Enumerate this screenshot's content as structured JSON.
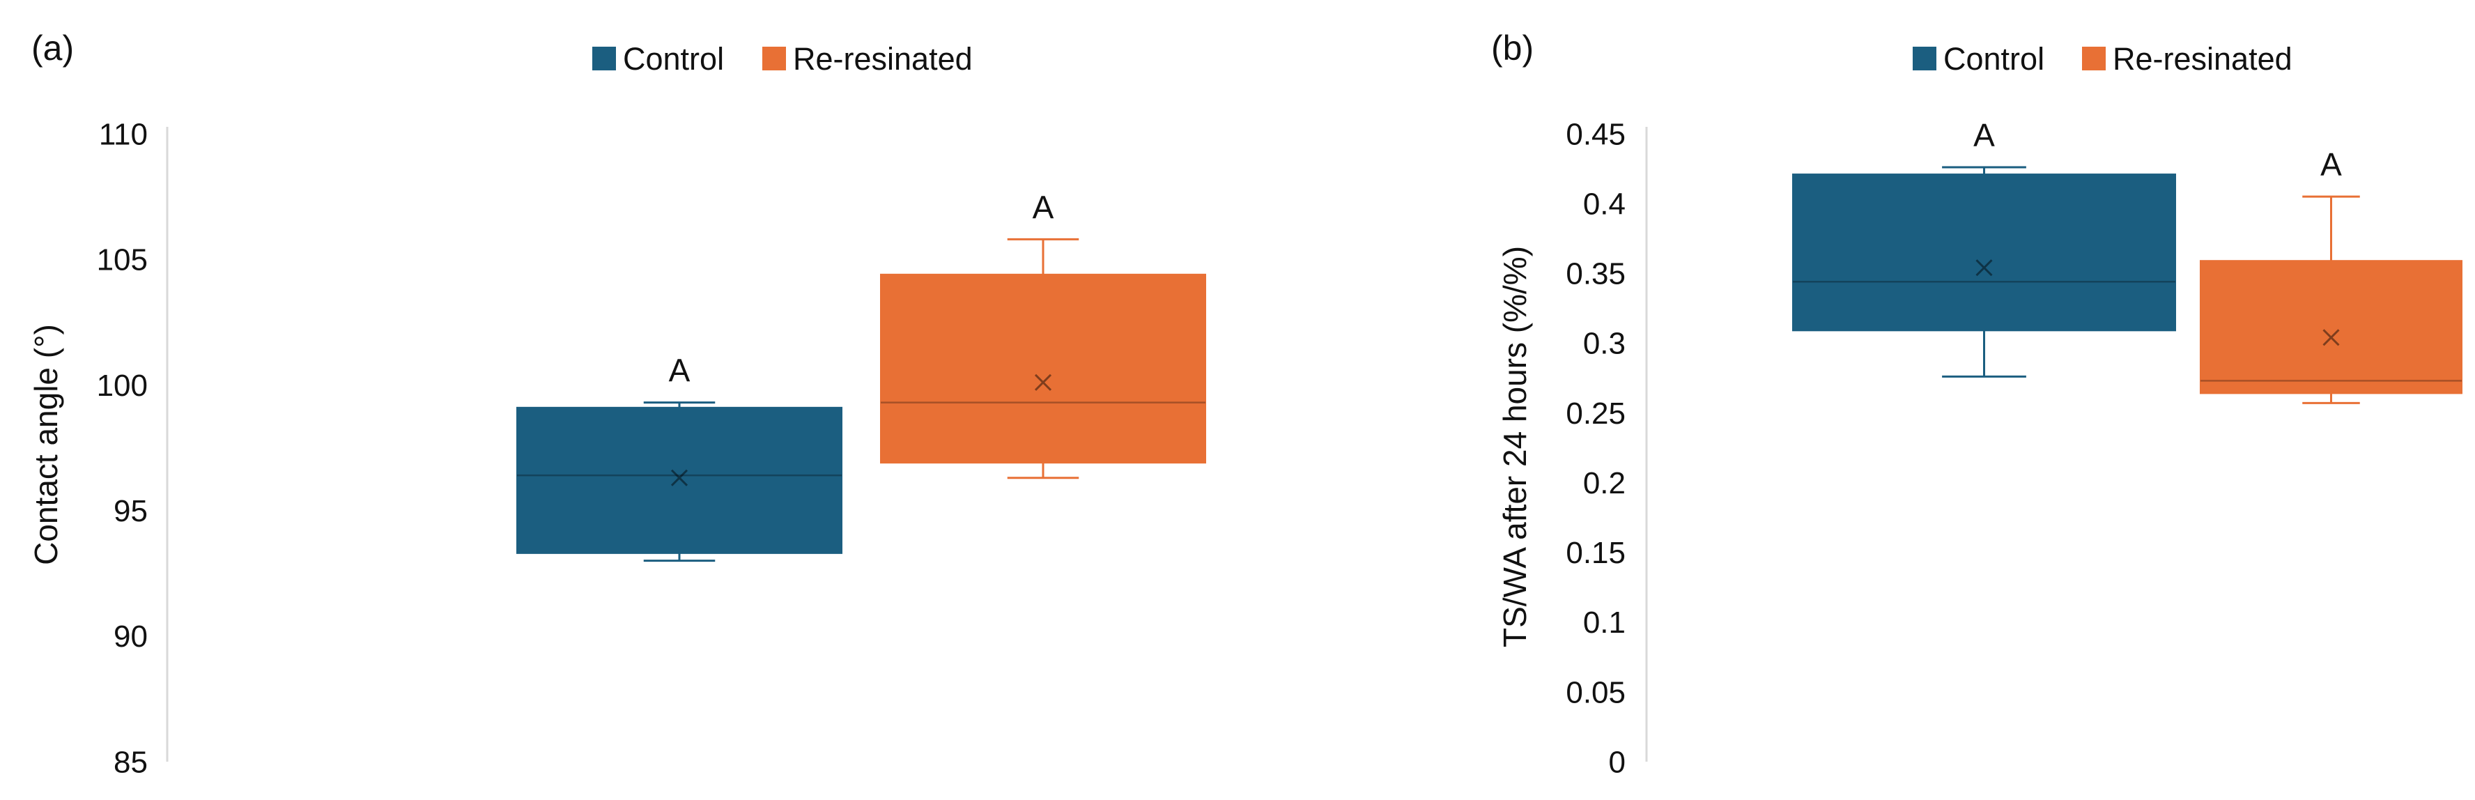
{
  "chart_data": [
    {
      "type": "box",
      "panel_label": "(a)",
      "title": "",
      "xlabel": "",
      "ylabel": "Contact angle (°)",
      "ylim": [
        85,
        110
      ],
      "yticks": [
        "85",
        "90",
        "95",
        "100",
        "105",
        "110"
      ],
      "legend": [
        "Control",
        "Re-resinated"
      ],
      "legend_position": "top-center",
      "colors": [
        "#1b5e80",
        "#e87035"
      ],
      "series": [
        {
          "name": "Control",
          "min": 93.0,
          "q1": 93.3,
          "median": 96.4,
          "q3": 99.1,
          "max": 99.3,
          "mean": 96.3,
          "letter": "A"
        },
        {
          "name": "Re-resinated",
          "min": 96.3,
          "q1": 96.9,
          "median": 99.3,
          "q3": 104.4,
          "max": 105.8,
          "mean": 100.1,
          "letter": "A"
        }
      ]
    },
    {
      "type": "box",
      "panel_label": "(b)",
      "title": "",
      "xlabel": "",
      "ylabel": "TS/WA after 24 hours (%/%)",
      "ylim": [
        0,
        0.45
      ],
      "yticks": [
        "0",
        "0.05",
        "0.1",
        "0.15",
        "0.2",
        "0.25",
        "0.3",
        "0.35",
        "0.4",
        "0.45"
      ],
      "legend": [
        "Control",
        "Re-resinated"
      ],
      "legend_position": "top-center",
      "colors": [
        "#1b5e80",
        "#e87035"
      ],
      "series": [
        {
          "name": "Control",
          "min": 0.276,
          "q1": 0.309,
          "median": 0.344,
          "q3": 0.421,
          "max": 0.426,
          "mean": 0.354,
          "letter": "A"
        },
        {
          "name": "Re-resinated",
          "min": 0.257,
          "q1": 0.264,
          "median": 0.273,
          "q3": 0.359,
          "max": 0.405,
          "mean": 0.304,
          "letter": "A"
        }
      ]
    }
  ]
}
